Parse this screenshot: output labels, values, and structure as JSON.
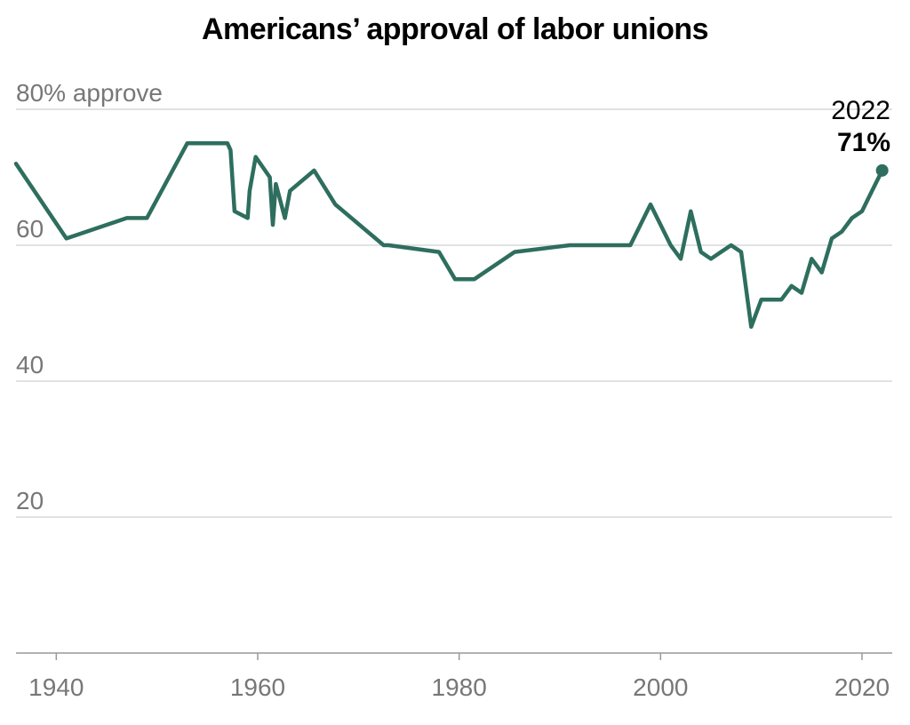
{
  "title": "Americans’ approval of labor unions",
  "colors": {
    "line": "#2e6e5e",
    "grid": "#d9d9d9",
    "axis": "#999999",
    "tick_text": "#777777"
  },
  "chart_data": {
    "type": "line",
    "title": "Americans’ approval of labor unions",
    "xlabel": "",
    "ylabel": "",
    "xlim": [
      1936,
      2023
    ],
    "ylim": [
      0,
      80
    ],
    "grid": true,
    "y_ticks": [
      {
        "value": 80,
        "label": "80% approve"
      },
      {
        "value": 60,
        "label": "60"
      },
      {
        "value": 40,
        "label": "40"
      },
      {
        "value": 20,
        "label": "20"
      }
    ],
    "x_ticks": [
      {
        "value": 1940,
        "label": "1940"
      },
      {
        "value": 1960,
        "label": "1960"
      },
      {
        "value": 1980,
        "label": "1980"
      },
      {
        "value": 2000,
        "label": "2000"
      },
      {
        "value": 2020,
        "label": "2020"
      }
    ],
    "series": [
      {
        "x": [
          1936,
          1941,
          1947,
          1949,
          1953,
          1957,
          1957.3,
          1957.7,
          1959,
          1959.2,
          1959.8,
          1961.2,
          1961.5,
          1961.8,
          1962.7,
          1963.2,
          1965.6,
          1967.7,
          1972.5,
          1973,
          1978,
          1979.6,
          1981.5,
          1985.5,
          1991,
          1997,
          1999,
          2001,
          2002,
          2003,
          2004,
          2005,
          2006,
          2007,
          2008,
          2009,
          2010,
          2011,
          2012,
          2013,
          2014,
          2015,
          2016,
          2017,
          2018,
          2019,
          2020,
          2021,
          2022
        ],
        "y": [
          72,
          61,
          64,
          64,
          75,
          75,
          74,
          65,
          64,
          68,
          73,
          70,
          63,
          69,
          64,
          68,
          71,
          66,
          60,
          60,
          59,
          55,
          55,
          59,
          60,
          60,
          66,
          60,
          58,
          65,
          59,
          58,
          59,
          60,
          59,
          48,
          52,
          52,
          52,
          54,
          53,
          58,
          56,
          61,
          62,
          64,
          65,
          68,
          71
        ]
      }
    ],
    "annotation": {
      "year": "2022",
      "value": "71%"
    }
  }
}
